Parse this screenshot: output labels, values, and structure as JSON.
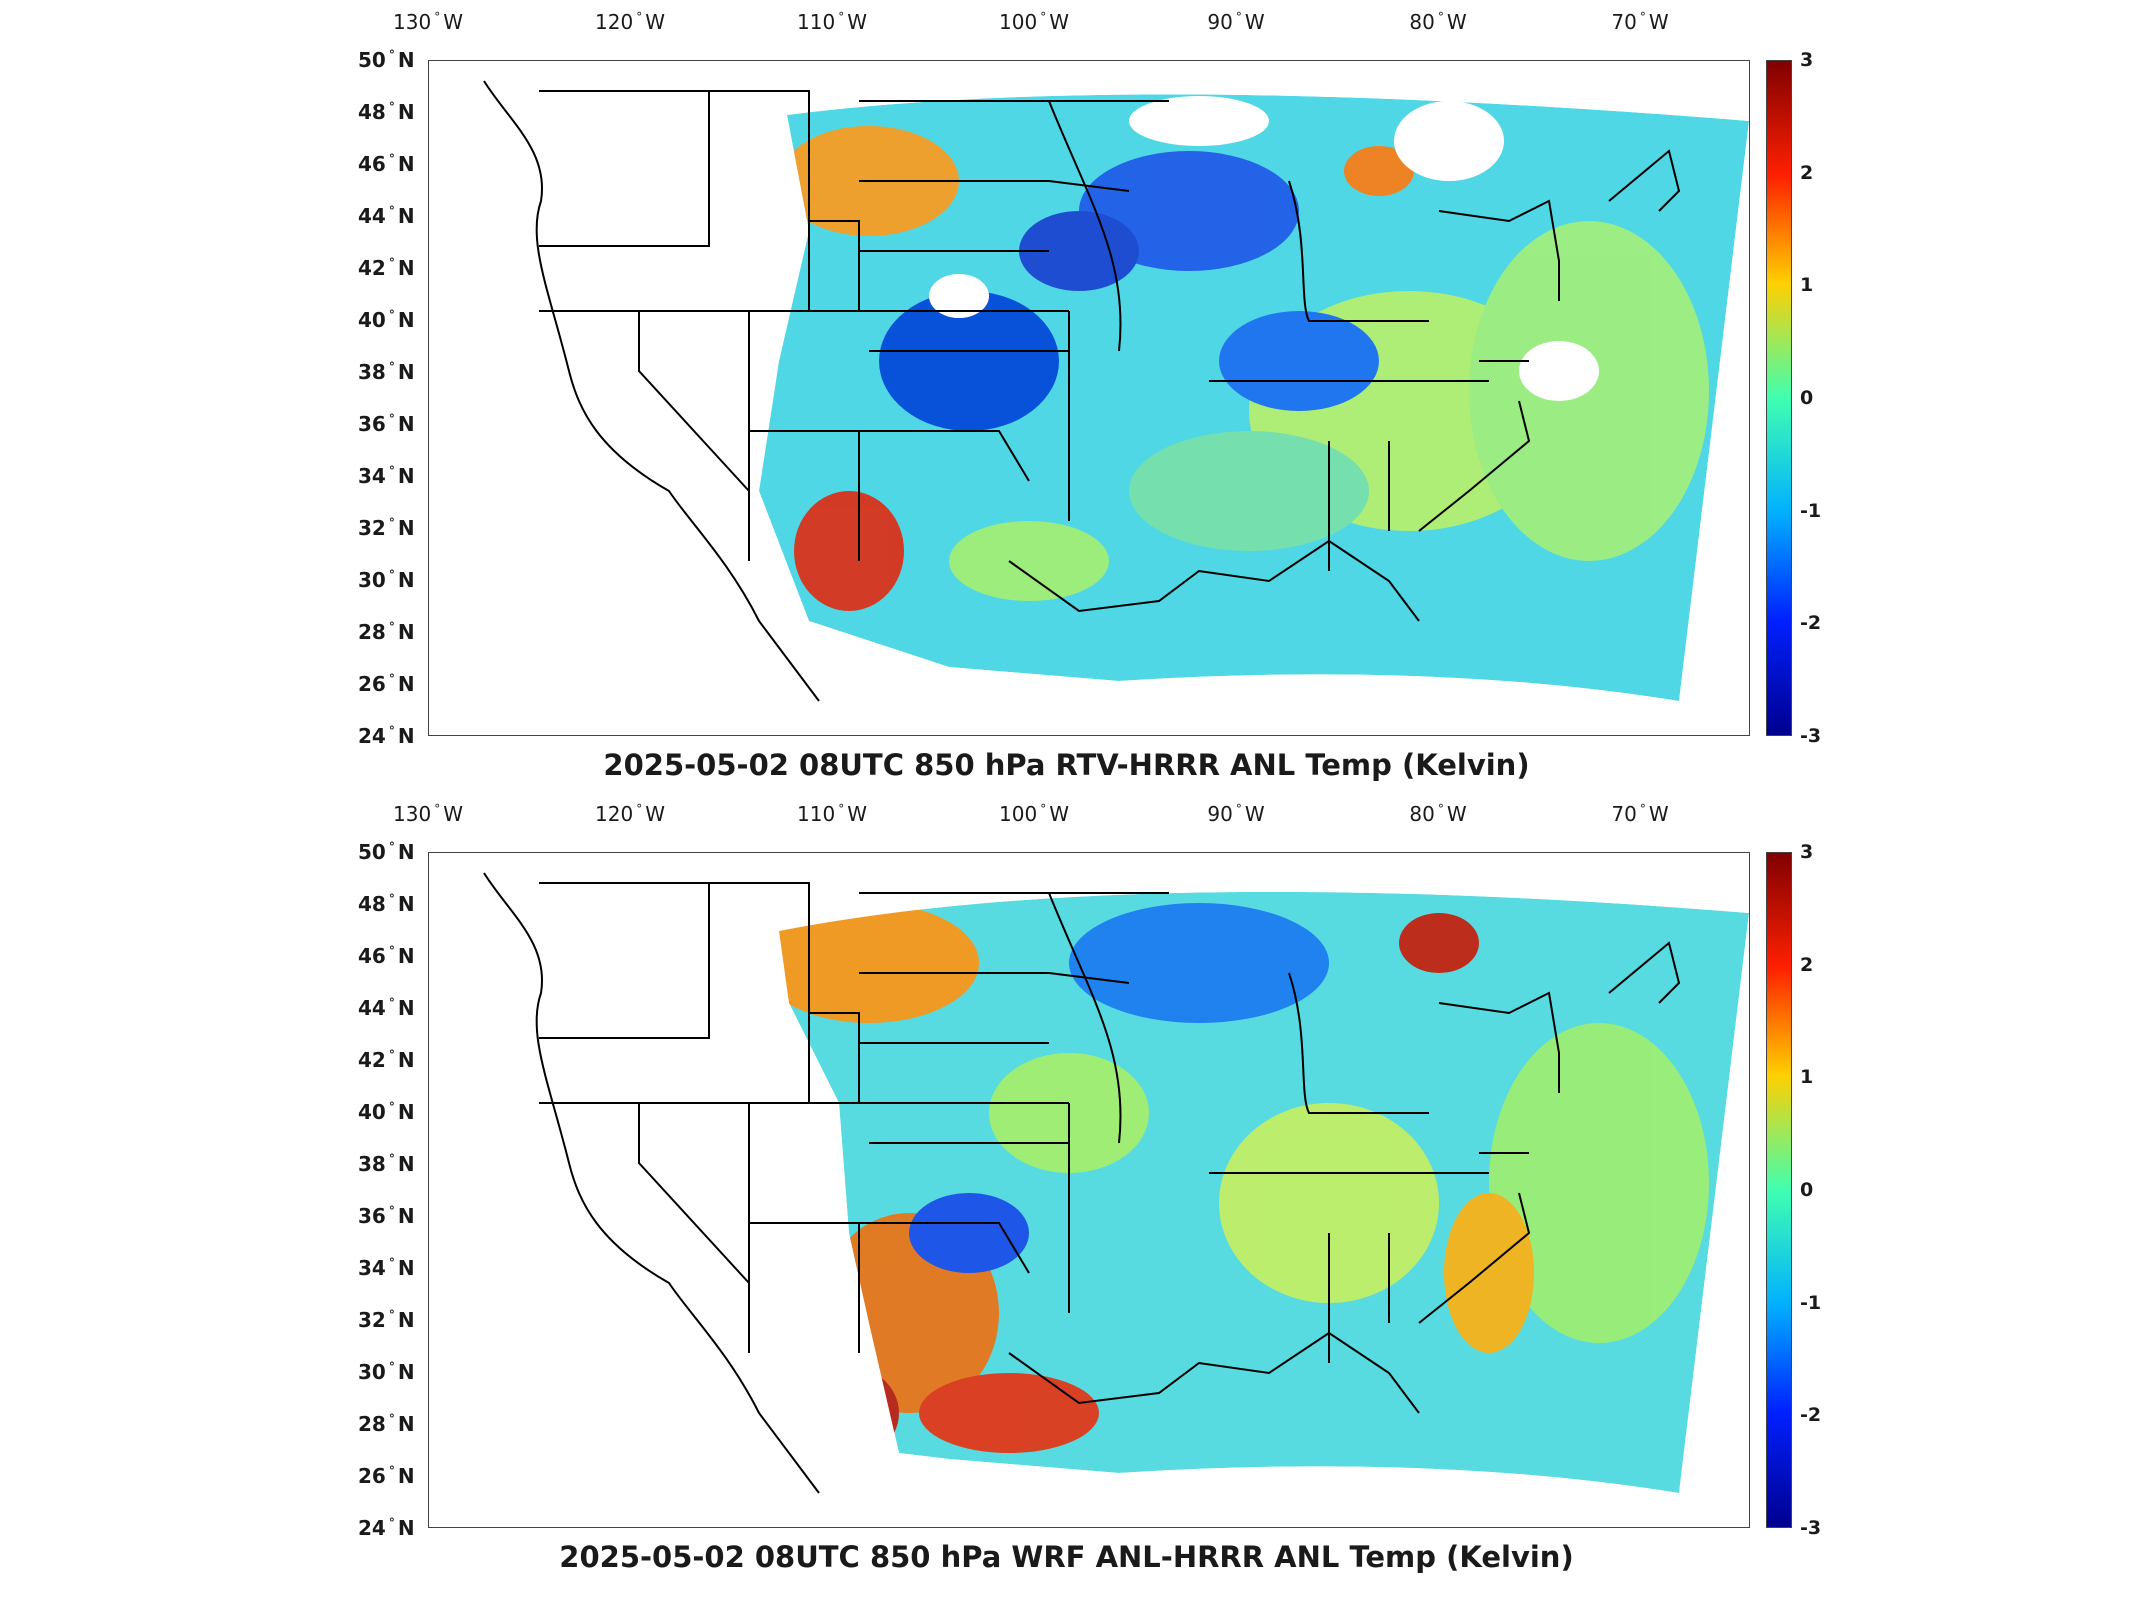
{
  "lon_ticks": [
    {
      "label": "130",
      "suffix": "W"
    },
    {
      "label": "120",
      "suffix": "W"
    },
    {
      "label": "110",
      "suffix": "W"
    },
    {
      "label": "100",
      "suffix": "W"
    },
    {
      "label": "90",
      "suffix": "W"
    },
    {
      "label": "80",
      "suffix": "W"
    },
    {
      "label": "70",
      "suffix": "W"
    }
  ],
  "lat_ticks": [
    {
      "label": "50",
      "suffix": "N"
    },
    {
      "label": "48",
      "suffix": "N"
    },
    {
      "label": "46",
      "suffix": "N"
    },
    {
      "label": "44",
      "suffix": "N"
    },
    {
      "label": "42",
      "suffix": "N"
    },
    {
      "label": "40",
      "suffix": "N"
    },
    {
      "label": "38",
      "suffix": "N"
    },
    {
      "label": "36",
      "suffix": "N"
    },
    {
      "label": "34",
      "suffix": "N"
    },
    {
      "label": "32",
      "suffix": "N"
    },
    {
      "label": "30",
      "suffix": "N"
    },
    {
      "label": "28",
      "suffix": "N"
    },
    {
      "label": "26",
      "suffix": "N"
    },
    {
      "label": "24",
      "suffix": "N"
    }
  ],
  "colorbar": {
    "ticks": [
      "3",
      "2",
      "1",
      "0",
      "-1",
      "-2",
      "-3"
    ],
    "colors": [
      "#800000",
      "#ff0000",
      "#ffff00",
      "#00ffcc",
      "#00a0ff",
      "#0000ff",
      "#00008f"
    ]
  },
  "panels": [
    {
      "title": "2025-05-02 08UTC 850 hPa RTV-HRRR ANL Temp (Kelvin)"
    },
    {
      "title": "2025-05-02 08UTC 850 hPa WRF ANL-HRRR ANL Temp (Kelvin)"
    }
  ]
}
